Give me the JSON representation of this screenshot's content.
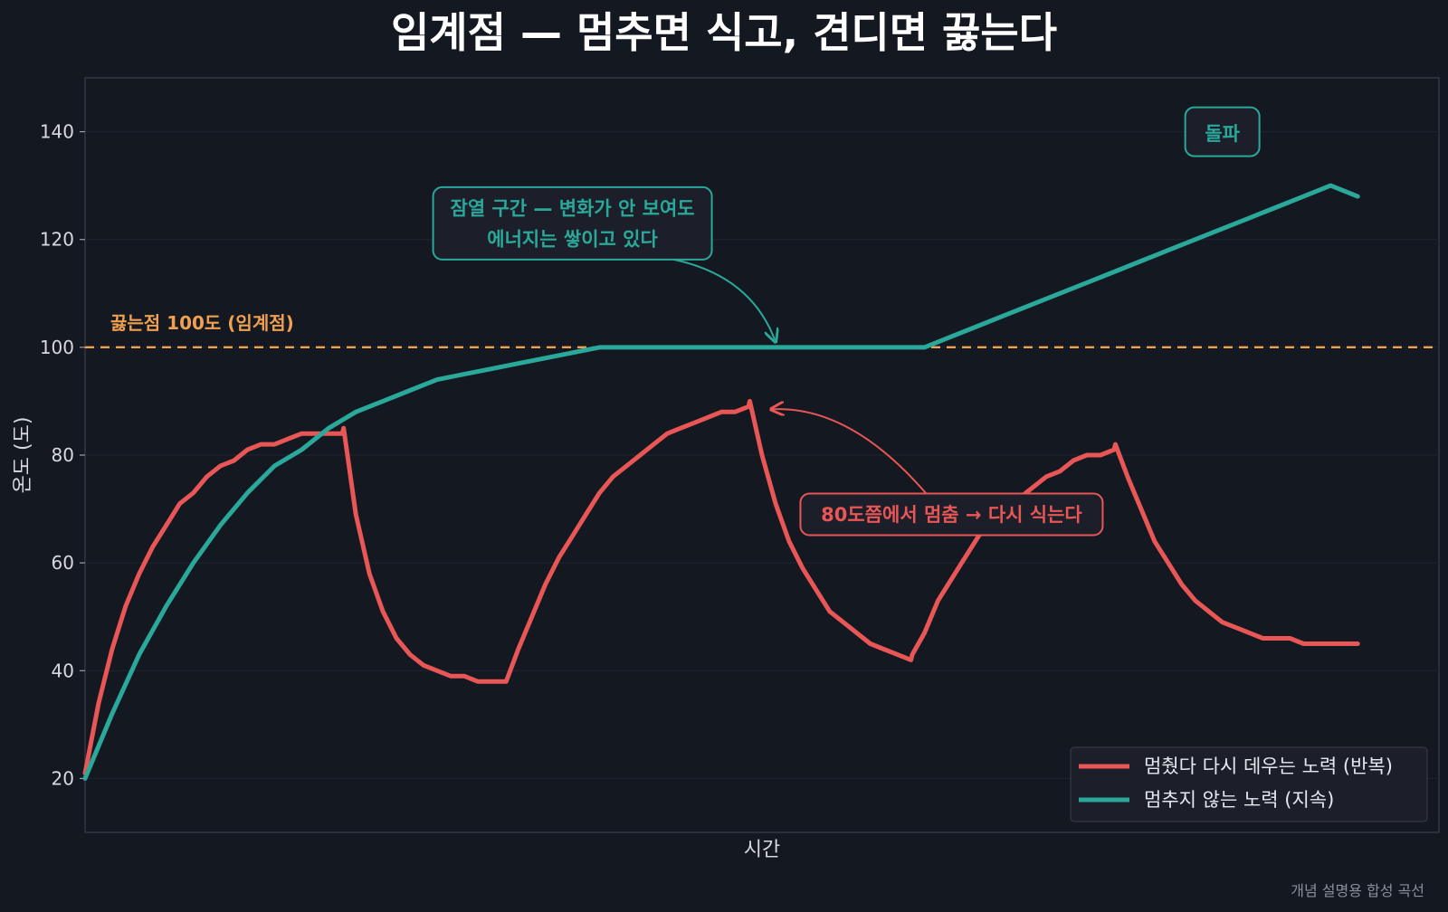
{
  "chart_data": {
    "type": "line",
    "title": "임계점 — 멈추면 식고, 견디면 끓는다",
    "xlabel": "시간",
    "ylabel": "온도 (도)",
    "ylim": [
      10,
      150
    ],
    "xlim": [
      0,
      100
    ],
    "yticks": [
      "20",
      "40",
      "60",
      "80",
      "100",
      "120",
      "140"
    ],
    "grid": true,
    "legend_position": "lower-right",
    "threshold": {
      "value": 100,
      "label": "끓는점 100도 (임계점)",
      "color": "#f0a050"
    },
    "series": [
      {
        "name": "멈췄다 다시 데우는 노력 (반복)",
        "color": "#e85656",
        "x": [
          0,
          1,
          2,
          3,
          4,
          5,
          6,
          7,
          8,
          9,
          10,
          11,
          12,
          13,
          14,
          15,
          16,
          17,
          18,
          19,
          19.1,
          20,
          21,
          22,
          23,
          24,
          25,
          26,
          27,
          28,
          29,
          30,
          31,
          31.1,
          32,
          33,
          34,
          35,
          36,
          37,
          38,
          39,
          40,
          41,
          42,
          43,
          44,
          45,
          46,
          47,
          48,
          49,
          49.1,
          50,
          51,
          52,
          53,
          54,
          55,
          56,
          57,
          58,
          59,
          60,
          61,
          61.1,
          62,
          63,
          64,
          65,
          66,
          67,
          68,
          69,
          70,
          71,
          72,
          73,
          74,
          75,
          76,
          76.1,
          77,
          78,
          79,
          80,
          81,
          82,
          83,
          84,
          85,
          86,
          87,
          88,
          89,
          90,
          91,
          92,
          93,
          94
        ],
        "y": [
          21,
          34,
          44,
          52,
          58,
          63,
          67,
          71,
          73,
          76,
          78,
          79,
          81,
          82,
          82,
          83,
          84,
          84,
          84,
          84,
          85,
          69,
          58,
          51,
          46,
          43,
          41,
          40,
          39,
          39,
          38,
          38,
          38,
          38,
          44,
          50,
          56,
          61,
          65,
          69,
          73,
          76,
          78,
          80,
          82,
          84,
          85,
          86,
          87,
          88,
          88,
          89,
          90,
          80,
          71,
          64,
          59,
          55,
          51,
          49,
          47,
          45,
          44,
          43,
          42,
          43,
          47,
          53,
          57,
          61,
          65,
          68,
          70,
          72,
          74,
          76,
          77,
          79,
          80,
          80,
          81,
          82,
          76,
          70,
          64,
          60,
          56,
          53,
          51,
          49,
          48,
          47,
          46,
          46,
          46,
          45,
          45,
          45,
          45,
          45
        ]
      },
      {
        "name": "멈추지 않는 노력 (지속)",
        "color": "#2aa89a",
        "x": [
          0,
          2,
          4,
          6,
          8,
          10,
          12,
          14,
          16,
          18,
          20,
          22,
          24,
          26,
          28,
          30,
          32,
          34,
          36,
          38,
          40,
          42,
          44,
          46,
          48,
          50,
          52,
          54,
          56,
          58,
          60,
          62,
          64,
          66,
          68,
          70,
          72,
          74,
          76,
          78,
          80,
          82,
          84,
          86,
          88,
          90,
          92,
          94
        ],
        "y": [
          20,
          32,
          43,
          52,
          60,
          67,
          73,
          78,
          81,
          85,
          88,
          90,
          92,
          94,
          95,
          96,
          97,
          98,
          99,
          100,
          100,
          100,
          100,
          100,
          100,
          100,
          100,
          100,
          100,
          100,
          100,
          100,
          102,
          104,
          106,
          108,
          110,
          112,
          114,
          116,
          118,
          120,
          122,
          124,
          126,
          128,
          130,
          128
        ]
      }
    ],
    "annotations": [
      {
        "text": "돌파",
        "color": "#2aa89a",
        "x": 84,
        "y": 140
      },
      {
        "text_lines": [
          "잠열 구간 — 변화가 안 보여도",
          "에너지는 쌓이고 있다"
        ],
        "color": "#2aa89a",
        "x": 36,
        "y": 123,
        "arrow_to": {
          "x": 51,
          "y": 100
        }
      },
      {
        "text": "80도쯤에서 멈춤 → 다시 식는다",
        "color": "#e85656",
        "x": 64,
        "y": 69,
        "arrow_to": {
          "x": 50,
          "y": 89
        }
      }
    ]
  },
  "footnote": "개념 설명용 합성 곡선"
}
